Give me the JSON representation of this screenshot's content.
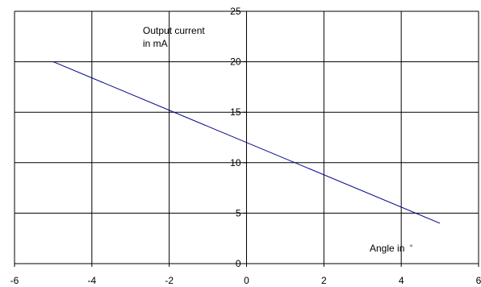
{
  "chart_data": {
    "type": "line",
    "ylabel_lines": [
      "Output current",
      "in mA"
    ],
    "xlabel_text": "Angle in",
    "xlabel_unit": "°",
    "xlim": [
      -6,
      6
    ],
    "ylim": [
      0,
      25
    ],
    "x_ticks": [
      -6,
      -4,
      -2,
      0,
      2,
      4,
      6
    ],
    "y_ticks": [
      0,
      5,
      10,
      15,
      20,
      25
    ],
    "grid": true,
    "series": [
      {
        "x": [
          -5,
          5
        ],
        "y": [
          20,
          4
        ],
        "color": "#00008b"
      }
    ]
  }
}
